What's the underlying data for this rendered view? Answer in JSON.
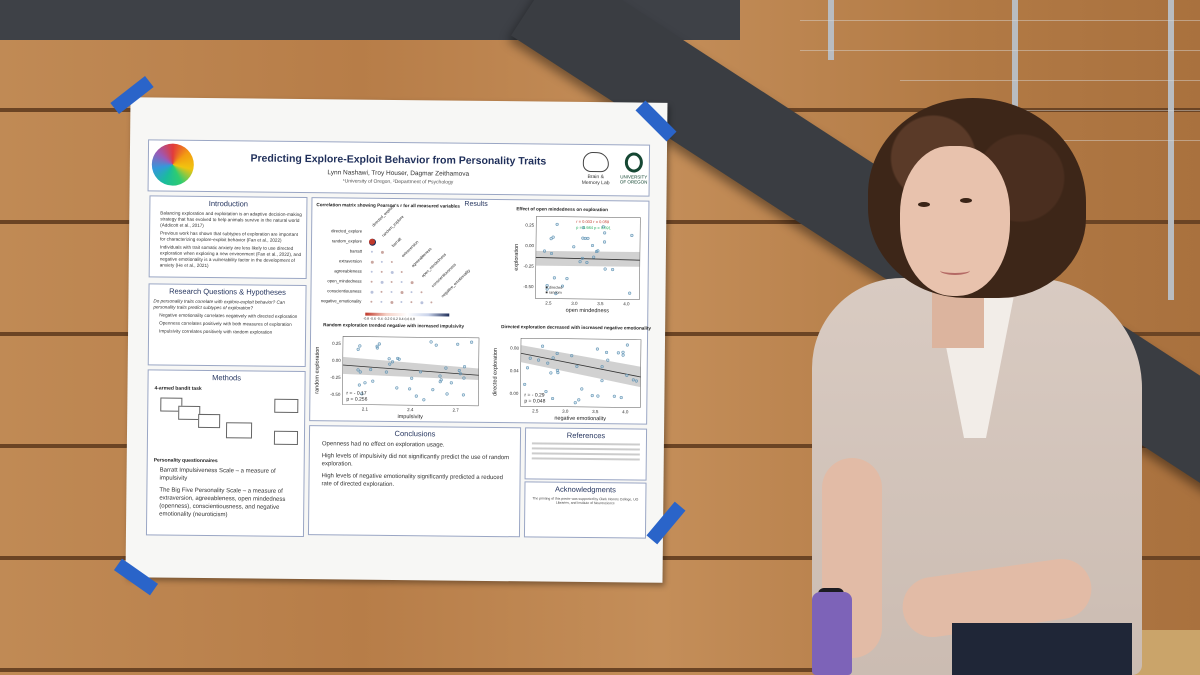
{
  "poster": {
    "title": "Predicting Explore-Exploit Behavior from Personality Traits",
    "authors": "Lynn Nashawi, Troy Houser, Dagmar Zeithamova",
    "affiliation": "¹University of Oregon, ²Department of Psychology",
    "logo_brain": "Brain & Memory Lab",
    "logo_uo": "UNIVERSITY OF OREGON",
    "introduction": {
      "heading": "Introduction",
      "items": [
        "Balancing exploration and exploitation is an adaptive decision-making strategy that has evolved to help animals survive in the natural world (Addicott et al., 2017)",
        "Previous work has shown that subtypes of exploration are important for characterizing explore-exploit behavior (Fan et al., 2022)",
        "Individuals with trait somatic anxiety are less likely to use directed exploration when exploring a new environment (Fan et al., 2022), and negative emotionality is a vulnerability factor in the development of anxiety (He et al., 2021)"
      ]
    },
    "research": {
      "heading": "Research Questions & Hypotheses",
      "questions": "Do personality traits correlate with explore-exploit behavior? Can personality traits predict subtypes of exploration?",
      "items": [
        "Negative emotionality correlates negatively with directed exploration",
        "Openness correlates positively with both measures of exploration",
        "Impulsivity correlates positively with random exploration"
      ]
    },
    "methods": {
      "heading": "Methods",
      "task_label": "4-armed bandit task",
      "questionnaires_label": "Personality questionnaires",
      "items": [
        "Barratt Impulsiveness Scale – a measure of impulsivity",
        "The Big Five Personality Scale – a measure of extraversion, agreeableness, open mindedness (openness), conscientiousness, and negative emotionality (neuroticism)"
      ]
    },
    "results": {
      "heading": "Results",
      "corr_title": "Correlation matrix showing Pearson's r for all measured variables",
      "corr_rows": [
        "directed_explore",
        "random_explore",
        "barratt",
        "extraversion",
        "agreeableness",
        "open_mindedness",
        "conscientiousness",
        "negative_emotionality"
      ],
      "corr_cols": [
        "directed_explore",
        "random_explore",
        "barratt",
        "extraversion",
        "agreeableness",
        "open_mindedness",
        "conscientiousness",
        "negative_emotionality"
      ],
      "colorbar_ticks": "-0.8 -0.6 -0.4 -0.2 0 0.2 0.4 0.6 0.8",
      "plot_open": {
        "title": "Effect of open mindedness on exploration",
        "xlabel": "open mindedness",
        "ylabel": "exploration",
        "xticks": [
          "2.5",
          "3.0",
          "3.5",
          "4.0"
        ],
        "yticks": [
          "0.25",
          "0.00",
          "-0.25",
          "-0.50"
        ],
        "stat_directed": "r = 0.003   r = 0.059",
        "stat_random": "p = 0.984   p = 0.691",
        "legend": [
          "directed",
          "random"
        ]
      },
      "plot_random": {
        "title": "Random exploration trended negative with increased impulsivity",
        "xlabel": "impulsivity",
        "ylabel": "random exploration",
        "xticks": [
          "2.1",
          "2.4",
          "2.7"
        ],
        "yticks": [
          "0.25",
          "0.00",
          "-0.25",
          "-0.50"
        ],
        "stat_r": "r = - 0.17",
        "stat_p": "p = 0.256"
      },
      "plot_directed": {
        "title": "Directed exploration decreased with increased negative emotionality",
        "xlabel": "negative emotionality",
        "ylabel": "directed exploration",
        "xticks": [
          "2.5",
          "3.0",
          "3.5",
          "4.0"
        ],
        "yticks": [
          "0.08",
          "0.04",
          "0.00"
        ],
        "stat_r": "r = - 0.29",
        "stat_p": "p = 0.048"
      }
    },
    "conclusions": {
      "heading": "Conclusions",
      "items": [
        "Openness had no effect on exploration usage.",
        "High levels of impulsivity did not significantly predict the use of random exploration.",
        "High levels of negative emotionality significantly predicted a reduced rate of directed exploration."
      ]
    },
    "references": {
      "heading": "References"
    },
    "acknowledgments": {
      "heading": "Acknowledgments",
      "text": "The printing of this poster was supported by Clark Honors College, UO Libraries, and Institute of Neuroscience"
    }
  },
  "colors": {
    "poster_accent": "#1f2f5a",
    "tape": "#2a64c9",
    "wall": "#b77d48",
    "corr_positive": "#1f2f5a",
    "corr_negative": "#c0392b"
  }
}
